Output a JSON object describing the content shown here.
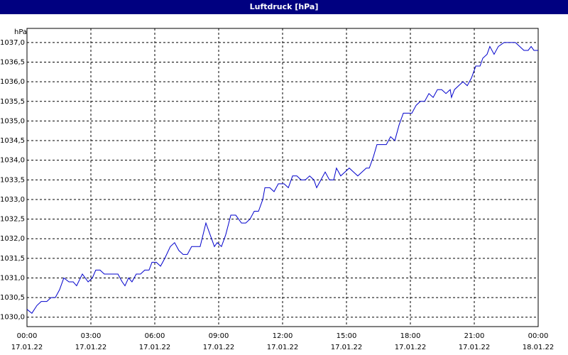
{
  "chart_data": {
    "type": "line",
    "title": "Luftdruck [hPa]",
    "y_label": "hPa",
    "xlim": [
      0,
      24
    ],
    "ylim": [
      1029.76,
      1037.36
    ],
    "grid": true,
    "xticks": [
      {
        "value": 0,
        "label": "00:00"
      },
      {
        "value": 3,
        "label": "03:00"
      },
      {
        "value": 6,
        "label": "06:00"
      },
      {
        "value": 9,
        "label": "09:00"
      },
      {
        "value": 12,
        "label": "12:00"
      },
      {
        "value": 15,
        "label": "15:00"
      },
      {
        "value": 18,
        "label": "18:00"
      },
      {
        "value": 21,
        "label": "21:00"
      },
      {
        "value": 24,
        "label": "00:00"
      }
    ],
    "xtick_dates": [
      "17.01.22",
      "17.01.22",
      "17.01.22",
      "17.01.22",
      "17.01.22",
      "17.01.22",
      "17.01.22",
      "17.01.22",
      "18.01.22"
    ],
    "yticks": [
      {
        "value": 1030,
        "label": "1030,0"
      },
      {
        "value": 1030.5,
        "label": "1030,5"
      },
      {
        "value": 1031,
        "label": "1031,0"
      },
      {
        "value": 1031.5,
        "label": "1031,5"
      },
      {
        "value": 1032,
        "label": "1032,0"
      },
      {
        "value": 1032.5,
        "label": "1032,5"
      },
      {
        "value": 1033,
        "label": "1033,0"
      },
      {
        "value": 1033.5,
        "label": "1033,5"
      },
      {
        "value": 1034,
        "label": "1034,0"
      },
      {
        "value": 1034.5,
        "label": "1034,5"
      },
      {
        "value": 1035,
        "label": "1035,0"
      },
      {
        "value": 1035.5,
        "label": "1035,5"
      },
      {
        "value": 1036,
        "label": "1036,0"
      },
      {
        "value": 1036.5,
        "label": "1036,5"
      },
      {
        "value": 1037,
        "label": "1037,0"
      }
    ],
    "color": "#0000cc",
    "x": [
      0,
      0.23,
      0.47,
      0.67,
      0.93,
      1.13,
      1.33,
      1.53,
      1.73,
      1.97,
      2.17,
      2.33,
      2.6,
      2.87,
      3.07,
      3.23,
      3.43,
      3.63,
      3.83,
      4.07,
      4.27,
      4.47,
      4.6,
      4.77,
      4.93,
      5.13,
      5.33,
      5.53,
      5.73,
      5.87,
      6.07,
      6.27,
      6.47,
      6.73,
      6.93,
      7.13,
      7.33,
      7.53,
      7.73,
      7.93,
      8.13,
      8.4,
      8.6,
      8.8,
      8.93,
      9.13,
      9.33,
      9.57,
      9.8,
      10.07,
      10.27,
      10.47,
      10.67,
      10.87,
      11.07,
      11.17,
      11.4,
      11.6,
      11.8,
      12.07,
      12.27,
      12.47,
      12.67,
      12.87,
      13.07,
      13.27,
      13.47,
      13.6,
      13.8,
      14,
      14.2,
      14.4,
      14.53,
      14.73,
      14.93,
      15.13,
      15.33,
      15.53,
      15.73,
      15.93,
      16.07,
      16.27,
      16.43,
      16.67,
      16.87,
      17.07,
      17.27,
      17.47,
      17.67,
      17.87,
      18.07,
      18.27,
      18.47,
      18.67,
      18.87,
      19.07,
      19.27,
      19.47,
      19.67,
      19.87,
      19.93,
      20.07,
      20.27,
      20.47,
      20.67,
      20.87,
      21.07,
      21.27,
      21.4,
      21.6,
      21.73,
      21.93,
      22.13,
      22.4,
      22.73,
      22.93,
      23.13,
      23.33,
      23.53,
      23.67,
      23.8,
      24
    ],
    "values": [
      1030.2,
      1030.1,
      1030.3,
      1030.4,
      1030.4,
      1030.5,
      1030.5,
      1030.7,
      1031.0,
      1030.9,
      1030.9,
      1030.8,
      1031.1,
      1030.9,
      1031.0,
      1031.2,
      1031.2,
      1031.1,
      1031.1,
      1031.1,
      1031.1,
      1030.9,
      1030.8,
      1031.0,
      1030.9,
      1031.1,
      1031.1,
      1031.2,
      1031.2,
      1031.4,
      1031.4,
      1031.3,
      1031.5,
      1031.8,
      1031.9,
      1031.7,
      1031.6,
      1031.6,
      1031.8,
      1031.8,
      1031.8,
      1032.4,
      1032.1,
      1031.8,
      1031.9,
      1031.8,
      1032.1,
      1032.6,
      1032.6,
      1032.4,
      1032.4,
      1032.5,
      1032.7,
      1032.7,
      1033.0,
      1033.3,
      1033.3,
      1033.2,
      1033.4,
      1033.4,
      1033.3,
      1033.6,
      1033.6,
      1033.5,
      1033.5,
      1033.6,
      1033.5,
      1033.3,
      1033.5,
      1033.7,
      1033.5,
      1033.5,
      1033.8,
      1033.6,
      1033.7,
      1033.8,
      1033.7,
      1033.6,
      1033.7,
      1033.8,
      1033.8,
      1034.1,
      1034.4,
      1034.4,
      1034.4,
      1034.6,
      1034.5,
      1034.9,
      1035.2,
      1035.2,
      1035.2,
      1035.4,
      1035.5,
      1035.5,
      1035.7,
      1035.6,
      1035.8,
      1035.8,
      1035.7,
      1035.8,
      1035.6,
      1035.8,
      1035.9,
      1036.0,
      1035.9,
      1036.1,
      1036.4,
      1036.4,
      1036.6,
      1036.7,
      1036.9,
      1036.7,
      1036.9,
      1037.0,
      1037.0,
      1037.0,
      1036.9,
      1036.8,
      1036.8,
      1036.9,
      1036.8,
      1036.8
    ]
  }
}
